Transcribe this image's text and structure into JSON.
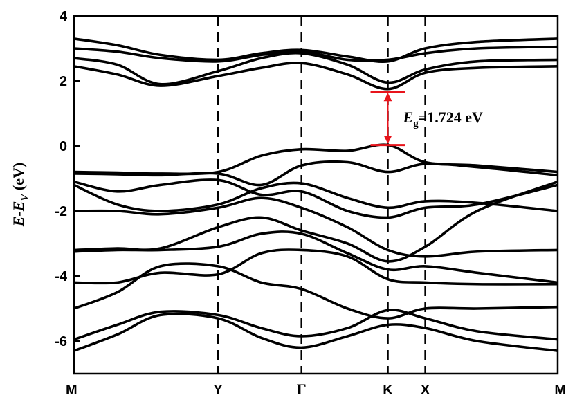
{
  "chart_data": {
    "type": "line",
    "title": "",
    "xlabel": "",
    "ylabel": {
      "main": "E-E",
      "sub": "V",
      "unit": " (eV)"
    },
    "ylim": [
      -7,
      4
    ],
    "yticks": [
      4,
      2,
      0,
      -2,
      -4,
      -6
    ],
    "grid": false,
    "legend": "none",
    "kpoints": [
      {
        "label": "M",
        "x": 0
      },
      {
        "label": "Y",
        "x": 1
      },
      {
        "label": "Γ",
        "x": 1.58
      },
      {
        "label": "K",
        "x": 2.18
      },
      {
        "label": "X",
        "x": 2.44
      },
      {
        "label": "M",
        "x": 3.36
      }
    ],
    "dashed_at": [
      1,
      1.58,
      2.18,
      2.44
    ],
    "annotation": {
      "label_main": "E",
      "label_sub": "g",
      "label_value": "=1.724 eV",
      "x": 2.18,
      "y_from": 0.03,
      "y_to": 1.67,
      "color": "#e8141c"
    },
    "series": [
      {
        "x": [
          0,
          0.3,
          0.6,
          1,
          1.3,
          1.58,
          1.9,
          2.18,
          2.44,
          2.8,
          3.36
        ],
        "y": [
          3.3,
          3.1,
          2.8,
          2.65,
          2.85,
          2.95,
          2.75,
          2.6,
          3.0,
          3.2,
          3.3
        ]
      },
      {
        "x": [
          0,
          0.3,
          0.6,
          1,
          1.3,
          1.58,
          1.9,
          2.18,
          2.44,
          2.8,
          3.36
        ],
        "y": [
          3.0,
          2.9,
          2.7,
          2.6,
          2.8,
          2.9,
          2.65,
          2.65,
          2.85,
          3.0,
          3.05
        ]
      },
      {
        "x": [
          0,
          0.3,
          0.6,
          1,
          1.3,
          1.58,
          1.9,
          2.18,
          2.44,
          2.8,
          3.36
        ],
        "y": [
          2.7,
          2.5,
          1.9,
          2.3,
          2.7,
          2.85,
          2.5,
          1.95,
          2.35,
          2.6,
          2.65
        ]
      },
      {
        "x": [
          0,
          0.3,
          0.6,
          1,
          1.3,
          1.58,
          1.9,
          2.18,
          2.44,
          2.8,
          3.36
        ],
        "y": [
          2.45,
          2.2,
          1.85,
          2.15,
          2.4,
          2.55,
          2.2,
          1.75,
          2.25,
          2.4,
          2.45
        ]
      },
      {
        "x": [
          0,
          0.3,
          0.6,
          1,
          1.3,
          1.58,
          1.9,
          2.18,
          2.44,
          2.8,
          3.36
        ],
        "y": [
          -0.8,
          -0.82,
          -0.85,
          -0.8,
          -0.3,
          -0.1,
          -0.15,
          0.03,
          -0.5,
          -0.6,
          -0.8
        ]
      },
      {
        "x": [
          0,
          0.3,
          0.6,
          1,
          1.3,
          1.58,
          1.9,
          2.18,
          2.44,
          2.8,
          3.36
        ],
        "y": [
          -0.85,
          -0.87,
          -0.9,
          -0.85,
          -1.2,
          -0.6,
          -0.5,
          -0.8,
          -0.55,
          -0.65,
          -0.9
        ]
      },
      {
        "x": [
          0,
          0.3,
          0.6,
          1,
          1.3,
          1.58,
          1.9,
          2.18,
          2.44,
          2.8,
          3.36
        ],
        "y": [
          -1.2,
          -1.8,
          -2.0,
          -1.8,
          -1.3,
          -1.15,
          -1.6,
          -1.9,
          -1.7,
          -1.75,
          -2.0
        ]
      },
      {
        "x": [
          0,
          0.3,
          0.6,
          1,
          1.3,
          1.58,
          1.9,
          2.18,
          2.44,
          2.8,
          3.36
        ],
        "y": [
          -1.1,
          -1.4,
          -1.2,
          -1.05,
          -1.5,
          -1.4,
          -2.0,
          -2.2,
          -1.9,
          -1.8,
          -1.2
        ]
      },
      {
        "x": [
          0,
          0.3,
          0.6,
          1,
          1.3,
          1.58,
          1.9,
          2.18,
          2.44,
          2.8,
          3.36
        ],
        "y": [
          -2.0,
          -2.0,
          -2.1,
          -1.9,
          -1.6,
          -1.9,
          -2.5,
          -3.2,
          -3.4,
          -3.25,
          -3.2
        ]
      },
      {
        "x": [
          0,
          0.3,
          0.6,
          1,
          1.3,
          1.58,
          1.9,
          2.18,
          2.44,
          2.8,
          3.36
        ],
        "y": [
          -3.2,
          -3.15,
          -3.15,
          -2.5,
          -2.2,
          -2.6,
          -3.0,
          -3.55,
          -3.1,
          -2.0,
          -1.1
        ]
      },
      {
        "x": [
          0,
          0.3,
          0.6,
          1,
          1.3,
          1.58,
          1.9,
          2.18,
          2.44,
          2.8,
          3.36
        ],
        "y": [
          -3.25,
          -3.2,
          -3.2,
          -3.1,
          -2.7,
          -2.7,
          -3.3,
          -3.8,
          -3.7,
          -3.9,
          -4.2
        ]
      },
      {
        "x": [
          0,
          0.3,
          0.6,
          1,
          1.3,
          1.58,
          1.9,
          2.18,
          2.44,
          2.8,
          3.36
        ],
        "y": [
          -4.2,
          -4.2,
          -3.9,
          -3.95,
          -3.3,
          -3.2,
          -3.4,
          -4.1,
          -4.2,
          -4.25,
          -4.25
        ]
      },
      {
        "x": [
          0,
          0.3,
          0.6,
          1,
          1.3,
          1.58,
          1.9,
          2.18,
          2.44,
          2.8,
          3.36
        ],
        "y": [
          -5.0,
          -4.5,
          -3.7,
          -3.7,
          -4.2,
          -4.4,
          -5.0,
          -5.3,
          -5.0,
          -5.0,
          -4.95
        ]
      },
      {
        "x": [
          0,
          0.3,
          0.6,
          1,
          1.3,
          1.58,
          1.9,
          2.18,
          2.44,
          2.8,
          3.36
        ],
        "y": [
          -5.95,
          -5.5,
          -5.1,
          -5.2,
          -5.6,
          -5.85,
          -5.6,
          -5.05,
          -5.3,
          -5.7,
          -5.95
        ]
      },
      {
        "x": [
          0,
          0.3,
          0.6,
          1,
          1.3,
          1.58,
          1.9,
          2.18,
          2.44,
          2.8,
          3.36
        ],
        "y": [
          -6.3,
          -5.8,
          -5.2,
          -5.3,
          -5.9,
          -6.2,
          -5.85,
          -5.5,
          -5.6,
          -6.0,
          -6.3
        ]
      }
    ]
  }
}
